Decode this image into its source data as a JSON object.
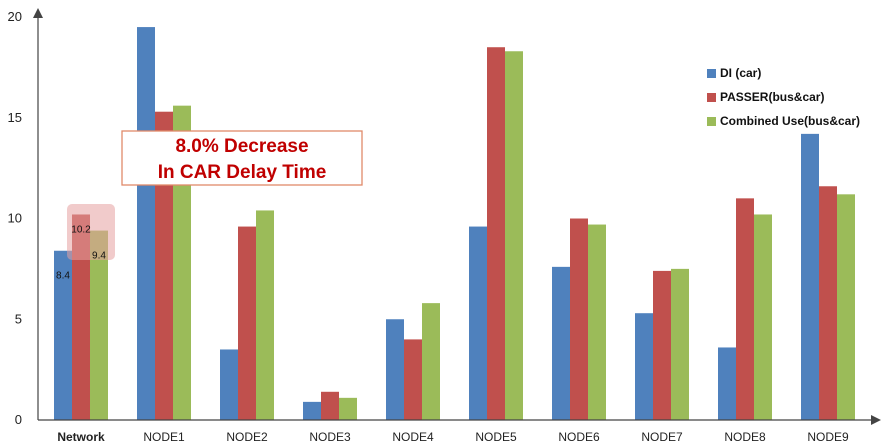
{
  "chart_data": {
    "type": "bar",
    "title": "",
    "xlabel": "",
    "ylabel": "",
    "ylim": [
      0,
      20
    ],
    "yticks": [
      0,
      5,
      10,
      15,
      20
    ],
    "categories": [
      "Network",
      "NODE1",
      "NODE2",
      "NODE3",
      "NODE4",
      "NODE5",
      "NODE6",
      "NODE7",
      "NODE8",
      "NODE9"
    ],
    "series": [
      {
        "name": "DI (car)",
        "color": "#4f81bd",
        "values": [
          8.4,
          19.5,
          3.5,
          0.9,
          5.0,
          9.6,
          7.6,
          5.3,
          3.6,
          14.2
        ]
      },
      {
        "name": "PASSER(bus&car)",
        "color": "#c0504d",
        "values": [
          10.2,
          15.3,
          9.6,
          1.4,
          4.0,
          18.5,
          10.0,
          7.4,
          11.0,
          11.6
        ]
      },
      {
        "name": "Combined Use(bus&car)",
        "color": "#9bbb59",
        "values": [
          9.4,
          15.6,
          10.4,
          1.1,
          5.8,
          18.3,
          9.7,
          7.5,
          10.2,
          11.2
        ]
      }
    ],
    "data_labels": {
      "category": "Network",
      "labels": [
        "8.4",
        "10.2",
        "9.4"
      ]
    },
    "annotation": {
      "lines": [
        "8.0% Decrease",
        "In CAR Delay Time"
      ]
    },
    "legend_position": "right",
    "grid": false
  }
}
